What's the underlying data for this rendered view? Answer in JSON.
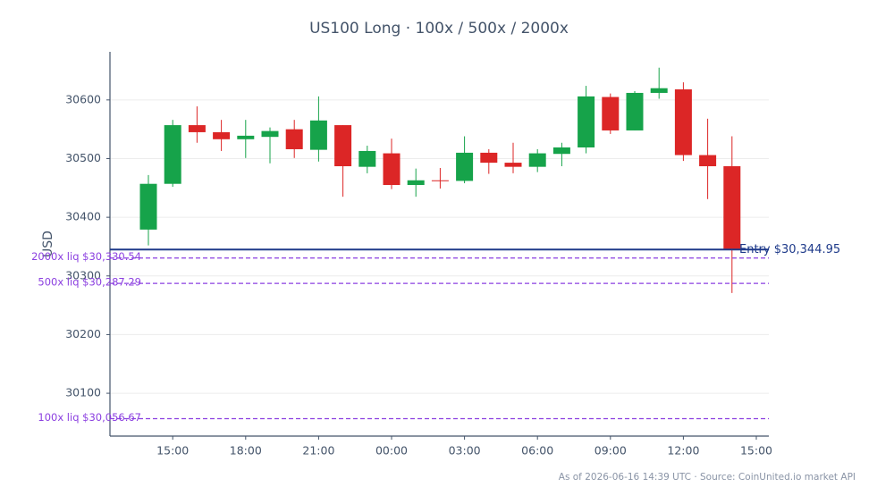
{
  "chart_data": {
    "type": "candlestick",
    "title": "US100 Long · 100x / 500x / 2000x",
    "ylabel": "USD",
    "footnote": "As of 2026-06-16 14:39 UTC · Source: CoinUnited.io market API",
    "categories": [
      null,
      "15:00",
      null,
      null,
      "18:00",
      null,
      null,
      "21:00",
      null,
      null,
      "00:00",
      null,
      null,
      "03:00",
      null,
      null,
      "06:00",
      null,
      null,
      "09:00",
      null,
      null,
      "12:00",
      null,
      null,
      "15:00"
    ],
    "open": [
      30379,
      30457,
      30557,
      30545,
      30533,
      30537,
      30550,
      30515,
      30557,
      30486,
      30509,
      30455,
      30463,
      30462,
      30510,
      30493,
      30486,
      30508,
      30519,
      30605,
      30548,
      30612,
      30618,
      30506,
      30487,
      null
    ],
    "high": [
      30472,
      30566,
      30589,
      30566,
      30566,
      30553,
      30566,
      30606,
      30557,
      30522,
      30534,
      30483,
      30484,
      30538,
      30516,
      30527,
      30516,
      30527,
      30624,
      30611,
      30615,
      30655,
      30630,
      30568,
      30538,
      null
    ],
    "low": [
      30352,
      30452,
      30527,
      30513,
      30501,
      30492,
      30501,
      30495,
      30435,
      30475,
      30448,
      30435,
      30449,
      30458,
      30474,
      30475,
      30477,
      30487,
      30509,
      30542,
      30548,
      30602,
      30496,
      30431,
      30271,
      null
    ],
    "close": [
      30457,
      30557,
      30545,
      30533,
      30539,
      30547,
      30516,
      30565,
      30487,
      30513,
      30455,
      30463,
      30462,
      30510,
      30493,
      30486,
      30509,
      30519,
      30606,
      30548,
      30612,
      30620,
      30506,
      30487,
      30345,
      null
    ],
    "up_color": "#16a34a",
    "down_color": "#dc2626",
    "ylim": [
      30027,
      30682
    ],
    "yticks": [
      30100,
      30200,
      30300,
      30400,
      30500,
      30600
    ],
    "grid": true,
    "hlines": [
      {
        "value": 30344.95,
        "label": "Entry $30,344.95",
        "color": "#1e3a8a",
        "style": "solid"
      },
      {
        "value": 30330.54,
        "label": "2000x liq $30,330.54",
        "color": "#8b3fe0",
        "style": "dashed"
      },
      {
        "value": 30287.29,
        "label": "500x liq $30,287.29",
        "color": "#8b3fe0",
        "style": "dashed"
      },
      {
        "value": 30056.67,
        "label": "100x liq $30,056.67",
        "color": "#8b3fe0",
        "style": "dashed"
      }
    ]
  }
}
